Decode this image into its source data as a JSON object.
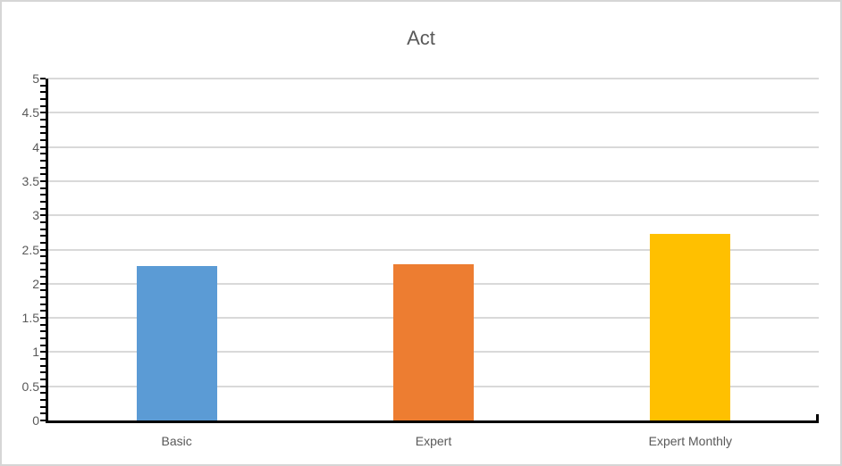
{
  "chart_title": "Act",
  "chart_data": {
    "type": "bar",
    "title": "Act",
    "categories": [
      "Basic",
      "Expert",
      "Expert Monthly"
    ],
    "values": [
      2.26,
      2.29,
      2.73
    ],
    "xlabel": "",
    "ylabel": "",
    "ylim": [
      0,
      5
    ],
    "ytick_step": 0.5,
    "minor_tick_step": 0.1,
    "ytick_labels": [
      "0",
      "0.5",
      "1",
      "1.5",
      "2",
      "2.5",
      "3",
      "3.5",
      "4",
      "4.5",
      "5"
    ],
    "grid": true,
    "legend": false,
    "bar_colors": [
      "#5B9BD5",
      "#ED7D31",
      "#FFC000"
    ],
    "gridline_color": "#D9D9D9",
    "axis_color": "#000000",
    "text_color": "#595959",
    "frame_border_color": "#D6D6D6",
    "background_color": "#FFFFFF"
  }
}
